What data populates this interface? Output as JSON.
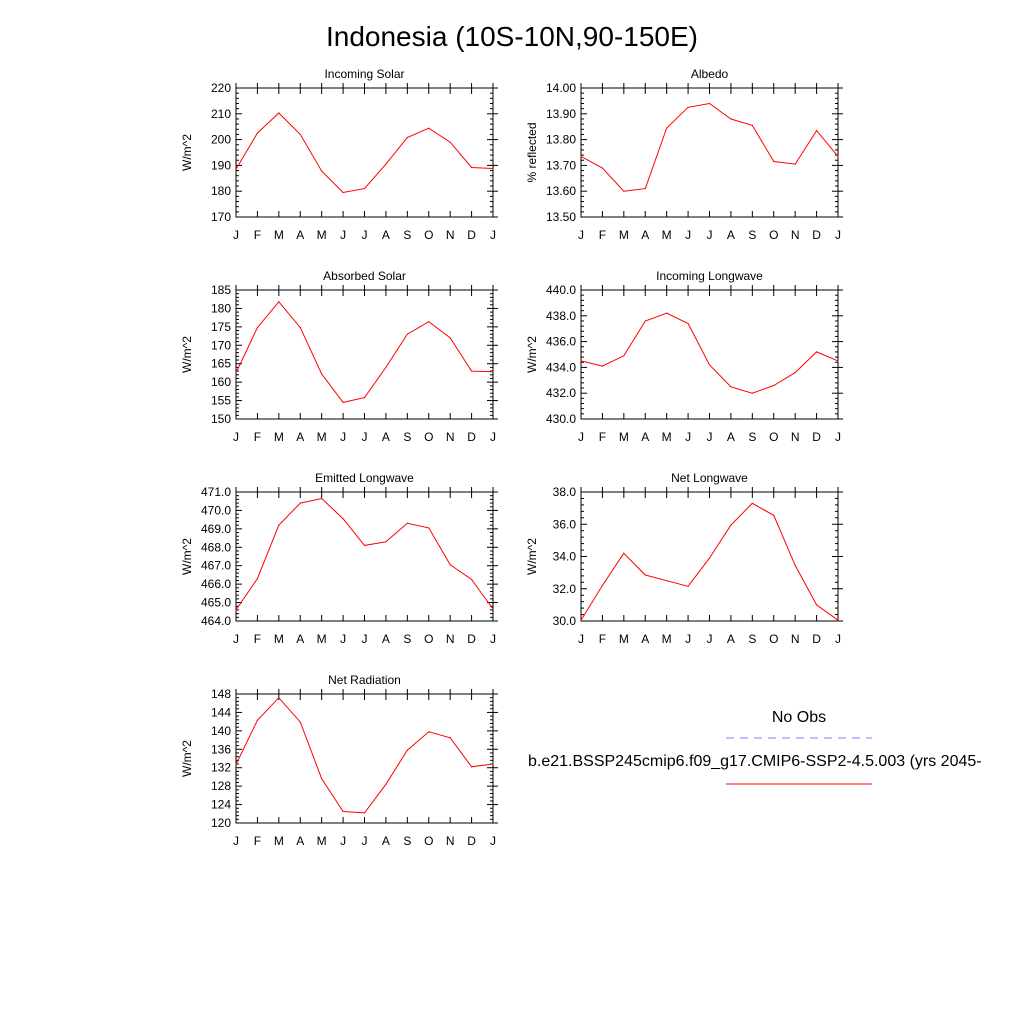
{
  "title": "Indonesia (10S-10N,90-150E)",
  "colors": {
    "model_line": "#ff0000",
    "obs_line": "#8080ff",
    "axis": "#000000"
  },
  "legend": {
    "obs_label": "No Obs",
    "model_label": "b.e21.BSSP245cmip6.f09_g17.CMIP6-SSP2-4.5.003 (yrs 2045-"
  },
  "chart_data": [
    {
      "type": "line",
      "title": "Incoming Solar",
      "xlabel": "",
      "ylabel": "W/m^2",
      "categories": [
        "J",
        "F",
        "M",
        "A",
        "M",
        "J",
        "J",
        "A",
        "S",
        "O",
        "N",
        "D",
        "J"
      ],
      "ylim": [
        170,
        220
      ],
      "yticks": [
        170,
        180,
        190,
        200,
        210,
        220
      ],
      "ytick_labels": [
        "170",
        "180",
        "190",
        "200",
        "210",
        "220"
      ],
      "series": [
        {
          "name": "model",
          "values": [
            188.5,
            202.5,
            210.3,
            202.0,
            187.8,
            179.5,
            181.0,
            190.5,
            200.8,
            204.4,
            199.0,
            189.2,
            188.8
          ]
        }
      ]
    },
    {
      "type": "line",
      "title": "Albedo",
      "xlabel": "",
      "ylabel": "% reflected",
      "categories": [
        "J",
        "F",
        "M",
        "A",
        "M",
        "J",
        "J",
        "A",
        "S",
        "O",
        "N",
        "D",
        "J"
      ],
      "ylim": [
        13.5,
        14.0
      ],
      "yticks": [
        13.5,
        13.6,
        13.7,
        13.8,
        13.9,
        14.0
      ],
      "ytick_labels": [
        "13.50",
        "13.60",
        "13.70",
        "13.80",
        "13.90",
        "14.00"
      ],
      "series": [
        {
          "name": "model",
          "values": [
            13.735,
            13.69,
            13.6,
            13.61,
            13.845,
            13.925,
            13.94,
            13.88,
            13.855,
            13.715,
            13.705,
            13.835,
            13.735
          ]
        }
      ]
    },
    {
      "type": "line",
      "title": "Absorbed Solar",
      "xlabel": "",
      "ylabel": "W/m^2",
      "categories": [
        "J",
        "F",
        "M",
        "A",
        "M",
        "J",
        "J",
        "A",
        "S",
        "O",
        "N",
        "D",
        "J"
      ],
      "ylim": [
        150,
        185
      ],
      "yticks": [
        150,
        155,
        160,
        165,
        170,
        175,
        180,
        185
      ],
      "ytick_labels": [
        "150",
        "155",
        "160",
        "165",
        "170",
        "175",
        "180",
        "185"
      ],
      "series": [
        {
          "name": "model",
          "values": [
            162.5,
            174.8,
            181.8,
            174.8,
            162.2,
            154.5,
            155.8,
            164.0,
            173.0,
            176.4,
            172.0,
            163.0,
            162.8
          ]
        }
      ]
    },
    {
      "type": "line",
      "title": "Incoming Longwave",
      "xlabel": "",
      "ylabel": "W/m^2",
      "categories": [
        "J",
        "F",
        "M",
        "A",
        "M",
        "J",
        "J",
        "A",
        "S",
        "O",
        "N",
        "D",
        "J"
      ],
      "ylim": [
        430,
        440
      ],
      "yticks": [
        430,
        432,
        434,
        436,
        438,
        440
      ],
      "ytick_labels": [
        "430.0",
        "432.0",
        "434.0",
        "436.0",
        "438.0",
        "440.0"
      ],
      "series": [
        {
          "name": "model",
          "values": [
            434.5,
            434.1,
            434.9,
            437.6,
            438.2,
            437.4,
            434.2,
            432.5,
            432.0,
            432.6,
            433.6,
            435.2,
            434.5
          ]
        }
      ]
    },
    {
      "type": "line",
      "title": "Emitted Longwave",
      "xlabel": "",
      "ylabel": "W/m^2",
      "categories": [
        "J",
        "F",
        "M",
        "A",
        "M",
        "J",
        "J",
        "A",
        "S",
        "O",
        "N",
        "D",
        "J"
      ],
      "ylim": [
        464,
        471
      ],
      "yticks": [
        464,
        465,
        466,
        467,
        468,
        469,
        470,
        471
      ],
      "ytick_labels": [
        "464.0",
        "465.0",
        "466.0",
        "467.0",
        "468.0",
        "469.0",
        "470.0",
        "471.0"
      ],
      "series": [
        {
          "name": "model",
          "values": [
            464.6,
            466.3,
            469.2,
            470.4,
            470.65,
            469.55,
            468.1,
            468.3,
            469.3,
            469.05,
            467.05,
            466.25,
            464.65
          ]
        }
      ]
    },
    {
      "type": "line",
      "title": "Net Longwave",
      "xlabel": "",
      "ylabel": "W/m^2",
      "categories": [
        "J",
        "F",
        "M",
        "A",
        "M",
        "J",
        "J",
        "A",
        "S",
        "O",
        "N",
        "D",
        "J"
      ],
      "ylim": [
        30,
        38
      ],
      "yticks": [
        30,
        32,
        34,
        36,
        38
      ],
      "ytick_labels": [
        "30.0",
        "32.0",
        "34.0",
        "36.0",
        "38.0"
      ],
      "series": [
        {
          "name": "model",
          "values": [
            30.05,
            32.2,
            34.2,
            32.85,
            32.5,
            32.15,
            33.9,
            35.95,
            37.3,
            36.55,
            33.45,
            31.0,
            30.05
          ]
        }
      ]
    },
    {
      "type": "line",
      "title": "Net Radiation",
      "xlabel": "",
      "ylabel": "W/m^2",
      "categories": [
        "J",
        "F",
        "M",
        "A",
        "M",
        "J",
        "J",
        "A",
        "S",
        "O",
        "N",
        "D",
        "J"
      ],
      "ylim": [
        120,
        148
      ],
      "yticks": [
        120,
        124,
        128,
        132,
        136,
        140,
        144,
        148
      ],
      "ytick_labels": [
        "120",
        "124",
        "128",
        "132",
        "136",
        "140",
        "144",
        "148"
      ],
      "series": [
        {
          "name": "model",
          "values": [
            132.7,
            142.3,
            147.2,
            141.9,
            129.6,
            122.5,
            122.2,
            128.4,
            135.8,
            139.8,
            138.5,
            132.2,
            132.8
          ]
        }
      ]
    }
  ]
}
